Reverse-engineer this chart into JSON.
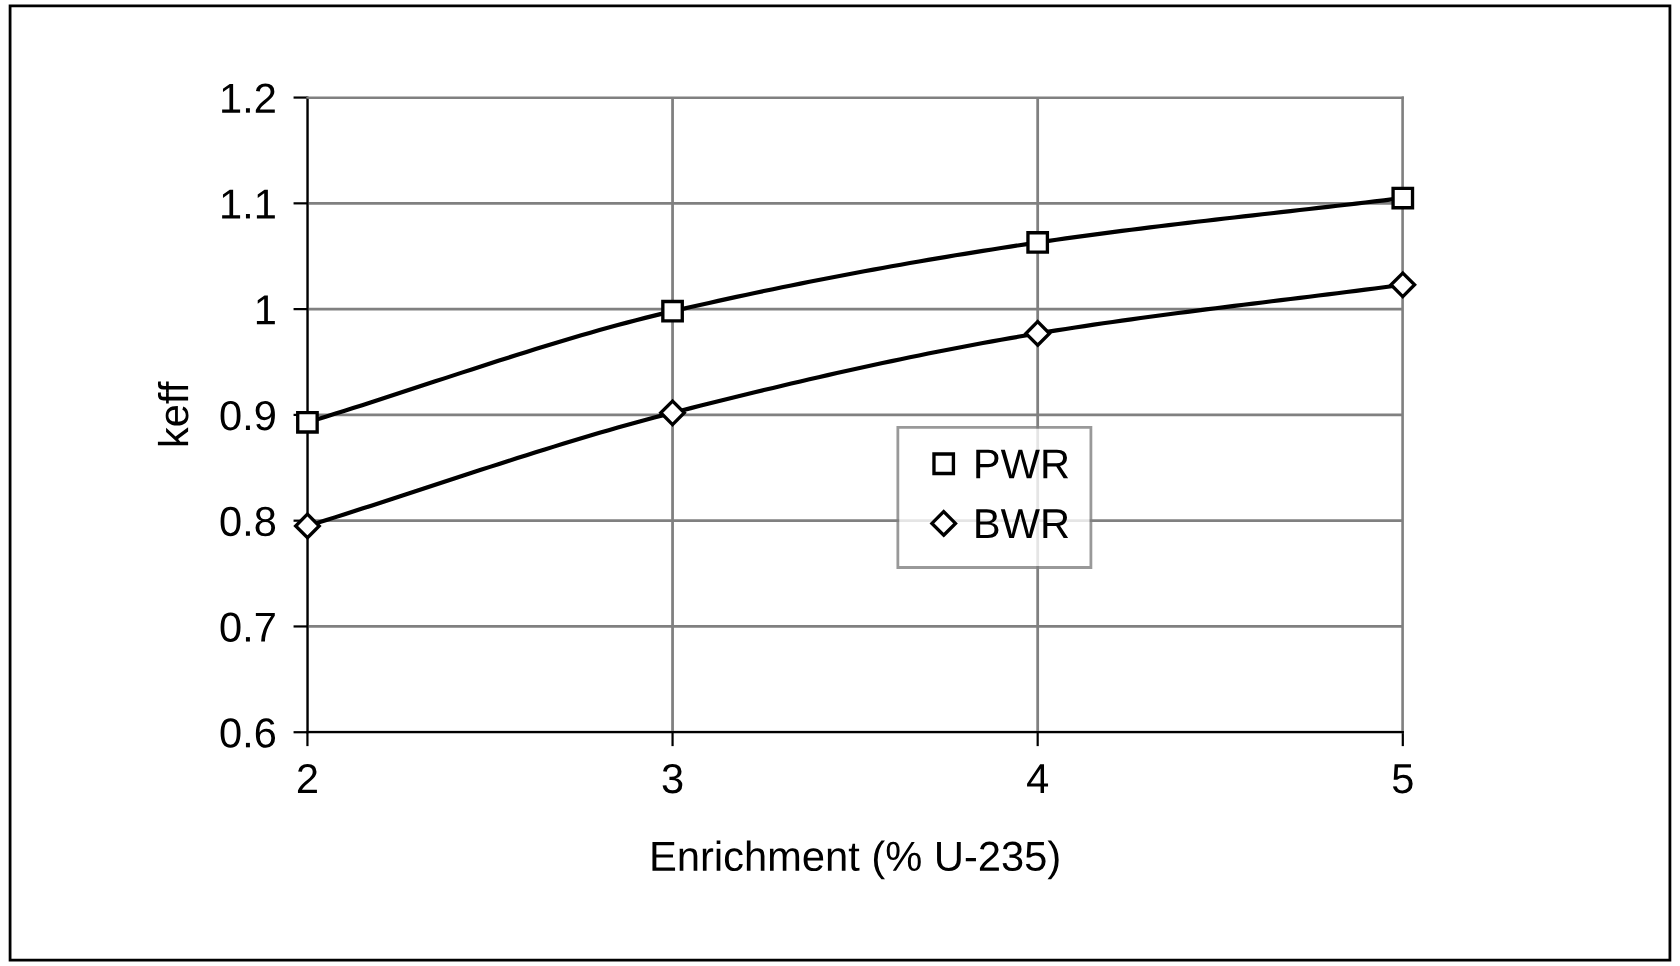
{
  "chart_data": {
    "type": "line",
    "xlabel": "Enrichment (% U-235)",
    "ylabel": "keff",
    "x": [
      2,
      3,
      4,
      5
    ],
    "series": [
      {
        "name": "PWR",
        "color": "#000000",
        "marker": "square",
        "values": [
          0.893,
          0.998,
          1.063,
          1.105
        ]
      },
      {
        "name": "BWR",
        "color": "#000000",
        "marker": "diamond",
        "values": [
          0.795,
          0.902,
          0.977,
          1.023
        ]
      }
    ],
    "xlim": [
      2,
      5
    ],
    "xticks": [
      2,
      3,
      4,
      5
    ],
    "ylim": [
      0.6,
      1.2
    ],
    "yticks": [
      0.6,
      0.7,
      0.8,
      0.9,
      1,
      1.1,
      1.2
    ],
    "grid": true,
    "legend": "right",
    "line_style": "solid"
  }
}
